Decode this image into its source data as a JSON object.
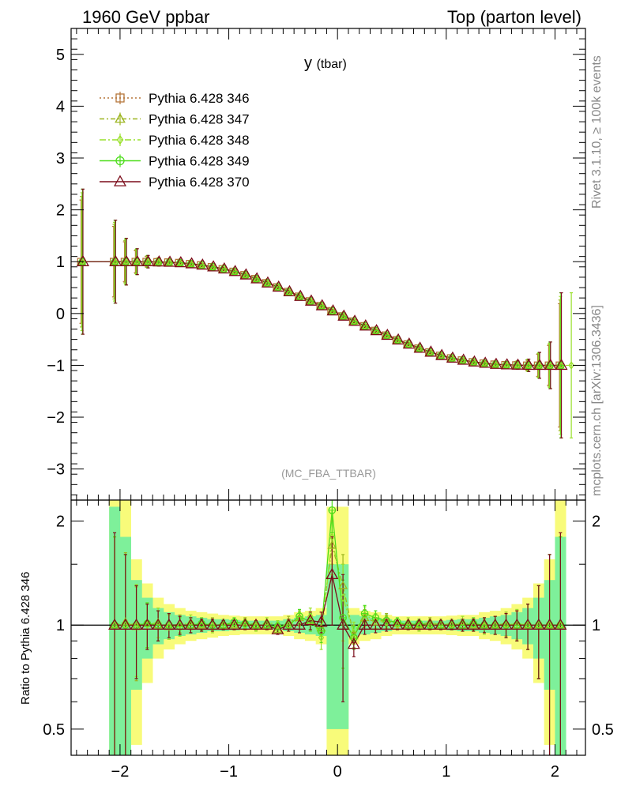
{
  "header": {
    "left_title": "1960 GeV ppbar",
    "right_title": "Top (parton level)"
  },
  "plot_title_main": "y",
  "plot_title_sub": "(tbar)",
  "analysis_tag": "(MC_FBA_TTBAR)",
  "side_labels": {
    "rivet": "Rivet 3.1.10, ≥ 100k events",
    "source": "mcplots.cern.ch [arXiv:1306.3436]"
  },
  "ratio_ylabel": "Ratio to Pythia 6.428 346",
  "colors": {
    "s346": "#b5753a",
    "s347": "#9cb520",
    "s348": "#99e02a",
    "s349": "#4cdd1a",
    "s370": "#7b0c1a",
    "band_inner": "#7ef09a",
    "band_outer": "#f8fb7a"
  },
  "legend": [
    {
      "name": "Pythia 6.428 346",
      "key": "s346",
      "marker": "square",
      "dash": "2,3"
    },
    {
      "name": "Pythia 6.428 347",
      "key": "s347",
      "marker": "triangle",
      "dash": "6,3,2,3"
    },
    {
      "name": "Pythia 6.428 348",
      "key": "s348",
      "marker": "diamond",
      "dash": "8,3,2,3"
    },
    {
      "name": "Pythia 6.428 349",
      "key": "s349",
      "marker": "circle",
      "dash": ""
    },
    {
      "name": "Pythia 6.428 370",
      "key": "s370",
      "marker": "triangle",
      "dash": ""
    }
  ],
  "chart_data": [
    {
      "type": "scatter",
      "panel": "main",
      "xlim": [
        -2.45,
        2.28
      ],
      "ylim": [
        -3.6,
        5.5
      ],
      "xticks": [
        -2,
        -1,
        0,
        1,
        2
      ],
      "xtick_labels": [
        "−2",
        "−1",
        "0",
        "1",
        "2"
      ],
      "yticks": [
        -3,
        -2,
        -1,
        0,
        1,
        2,
        3,
        4,
        5
      ],
      "ytick_labels": [
        "−3",
        "−2",
        "−1",
        "0",
        "1",
        "2",
        "3",
        "4",
        "5"
      ],
      "x": [
        -2.35,
        -2.05,
        -1.95,
        -1.85,
        -1.75,
        -1.65,
        -1.55,
        -1.45,
        -1.35,
        -1.25,
        -1.15,
        -1.05,
        -0.95,
        -0.85,
        -0.75,
        -0.65,
        -0.55,
        -0.45,
        -0.35,
        -0.25,
        -0.15,
        -0.05,
        0.05,
        0.15,
        0.25,
        0.35,
        0.45,
        0.55,
        0.65,
        0.75,
        0.85,
        0.95,
        1.05,
        1.15,
        1.25,
        1.35,
        1.45,
        1.55,
        1.65,
        1.75,
        1.85,
        1.95,
        2.05
      ],
      "y": [
        1.0,
        1.0,
        1.0,
        1.0,
        1.0,
        0.995,
        0.99,
        0.98,
        0.96,
        0.935,
        0.9,
        0.86,
        0.81,
        0.745,
        0.67,
        0.59,
        0.51,
        0.42,
        0.33,
        0.24,
        0.15,
        0.05,
        -0.05,
        -0.15,
        -0.24,
        -0.33,
        -0.42,
        -0.51,
        -0.59,
        -0.67,
        -0.745,
        -0.81,
        -0.86,
        -0.9,
        -0.935,
        -0.96,
        -0.98,
        -0.99,
        -0.995,
        -1.0,
        -1.0,
        -1.0,
        -1.0
      ],
      "yerr": [
        1.4,
        0.8,
        0.45,
        0.25,
        0.12,
        0.08,
        0.06,
        0.05,
        0.04,
        0.03,
        0.03,
        0.03,
        0.03,
        0.03,
        0.03,
        0.03,
        0.03,
        0.03,
        0.03,
        0.03,
        0.03,
        0.03,
        0.03,
        0.03,
        0.03,
        0.03,
        0.03,
        0.03,
        0.03,
        0.03,
        0.03,
        0.03,
        0.03,
        0.03,
        0.03,
        0.04,
        0.05,
        0.06,
        0.08,
        0.12,
        0.25,
        0.45,
        1.4
      ],
      "extra_points": [
        {
          "series": "Pythia 6.428 348",
          "x": 2.15,
          "y": -1.0,
          "yerr": 1.4
        }
      ]
    },
    {
      "type": "scatter",
      "panel": "ratio",
      "ylabel": "Ratio to Pythia 6.428 346",
      "xlim": [
        -2.45,
        2.28
      ],
      "ylim": [
        0.42,
        2.3
      ],
      "log_y": true,
      "yticks": [
        0.5,
        1,
        2
      ],
      "ytick_labels": [
        "0.5",
        "1",
        "2"
      ],
      "bins": [
        -2.1,
        -2.0,
        -1.9,
        -1.8,
        -1.7,
        -1.6,
        -1.5,
        -1.4,
        -1.3,
        -1.2,
        -1.1,
        -1.0,
        -0.9,
        -0.8,
        -0.7,
        -0.6,
        -0.5,
        -0.4,
        -0.3,
        -0.2,
        -0.1,
        0.0,
        0.1,
        0.2,
        0.3,
        0.4,
        0.5,
        0.6,
        0.7,
        0.8,
        0.9,
        1.0,
        1.1,
        1.2,
        1.3,
        1.4,
        1.5,
        1.6,
        1.7,
        1.8,
        1.9,
        2.0,
        2.1
      ],
      "band_inner_halfwidth": [
        1.2,
        0.8,
        0.35,
        0.2,
        0.12,
        0.09,
        0.07,
        0.06,
        0.05,
        0.04,
        0.04,
        0.035,
        0.03,
        0.03,
        0.03,
        0.03,
        0.04,
        0.05,
        0.06,
        0.07,
        0.5,
        0.5,
        0.07,
        0.06,
        0.05,
        0.04,
        0.03,
        0.03,
        0.03,
        0.03,
        0.03,
        0.035,
        0.04,
        0.04,
        0.05,
        0.06,
        0.07,
        0.09,
        0.12,
        0.2,
        0.35,
        0.8
      ],
      "band_outer_halfwidth": [
        1.9,
        1.3,
        0.55,
        0.32,
        0.2,
        0.15,
        0.12,
        0.1,
        0.09,
        0.08,
        0.07,
        0.065,
        0.06,
        0.06,
        0.06,
        0.06,
        0.07,
        0.09,
        0.1,
        0.12,
        1.2,
        1.2,
        0.12,
        0.1,
        0.09,
        0.07,
        0.06,
        0.06,
        0.06,
        0.06,
        0.06,
        0.065,
        0.07,
        0.07,
        0.09,
        0.1,
        0.12,
        0.15,
        0.2,
        0.32,
        0.55,
        1.3
      ],
      "x": [
        -2.05,
        -1.95,
        -1.85,
        -1.75,
        -1.65,
        -1.55,
        -1.45,
        -1.35,
        -1.25,
        -1.15,
        -1.05,
        -0.95,
        -0.85,
        -0.75,
        -0.65,
        -0.55,
        -0.45,
        -0.35,
        -0.25,
        -0.15,
        -0.05,
        0.05,
        0.15,
        0.25,
        0.35,
        0.45,
        0.55,
        0.65,
        0.75,
        0.85,
        0.95,
        1.05,
        1.15,
        1.25,
        1.35,
        1.45,
        1.55,
        1.65,
        1.75,
        1.85,
        1.95,
        2.05
      ],
      "series": [
        {
          "name": "Pythia 6.428 347",
          "key": "s347",
          "values": [
            1.0,
            1.02,
            0.99,
            1.01,
            1.0,
            0.99,
            1.01,
            1.0,
            1.0,
            1.01,
            1.0,
            1.0,
            1.02,
            1.0,
            1.0,
            0.97,
            1.02,
            1.05,
            1.03,
            0.98,
            1.7,
            1.3,
            0.93,
            1.05,
            1.02,
            1.04,
            1.01,
            1.0,
            1.0,
            1.02,
            1.0,
            1.01,
            1.0,
            1.0,
            1.0,
            1.0,
            1.01,
            1.0,
            1.0,
            1.0,
            1.0,
            1.0
          ],
          "errors": [
            0.8,
            0.6,
            0.3,
            0.15,
            0.1,
            0.08,
            0.06,
            0.05,
            0.04,
            0.04,
            0.03,
            0.03,
            0.03,
            0.03,
            0.03,
            0.03,
            0.04,
            0.05,
            0.06,
            0.07,
            0.3,
            0.3,
            0.07,
            0.06,
            0.05,
            0.04,
            0.03,
            0.03,
            0.03,
            0.03,
            0.03,
            0.03,
            0.04,
            0.04,
            0.05,
            0.06,
            0.08,
            0.1,
            0.15,
            0.3,
            0.6,
            0.8
          ]
        },
        {
          "name": "Pythia 6.428 348",
          "key": "s348",
          "values": [
            1.0,
            1.0,
            1.01,
            1.0,
            1.02,
            0.99,
            1.0,
            1.02,
            1.0,
            0.99,
            1.01,
            1.0,
            1.0,
            0.99,
            1.02,
            1.0,
            1.0,
            1.04,
            1.06,
            0.92,
            1.8,
            1.2,
            0.95,
            1.07,
            1.03,
            1.02,
            1.0,
            1.02,
            0.99,
            1.0,
            1.01,
            1.0,
            1.02,
            1.0,
            0.99,
            1.0,
            1.0,
            1.01,
            1.0,
            1.0,
            1.0,
            1.0
          ],
          "errors": [
            0.8,
            0.6,
            0.3,
            0.15,
            0.1,
            0.08,
            0.06,
            0.05,
            0.04,
            0.04,
            0.03,
            0.03,
            0.03,
            0.03,
            0.03,
            0.03,
            0.04,
            0.05,
            0.06,
            0.07,
            0.3,
            0.3,
            0.07,
            0.06,
            0.05,
            0.04,
            0.03,
            0.03,
            0.03,
            0.03,
            0.03,
            0.03,
            0.04,
            0.04,
            0.05,
            0.06,
            0.08,
            0.1,
            0.15,
            0.3,
            0.6,
            0.8
          ]
        },
        {
          "name": "Pythia 6.428 349",
          "key": "s349",
          "values": [
            1.0,
            1.0,
            1.0,
            1.01,
            1.0,
            1.0,
            0.99,
            1.0,
            1.01,
            1.0,
            1.0,
            1.02,
            1.01,
            1.0,
            1.0,
            0.99,
            1.0,
            1.06,
            1.02,
            0.96,
            2.15,
            1.05,
            0.92,
            1.08,
            1.05,
            1.03,
            1.02,
            1.0,
            1.01,
            1.0,
            1.0,
            1.0,
            1.0,
            1.01,
            1.0,
            1.0,
            1.0,
            1.0,
            1.0,
            1.0,
            1.0,
            1.0
          ],
          "errors": [
            0.8,
            0.6,
            0.3,
            0.15,
            0.1,
            0.08,
            0.06,
            0.05,
            0.04,
            0.04,
            0.03,
            0.03,
            0.03,
            0.03,
            0.03,
            0.03,
            0.04,
            0.05,
            0.06,
            0.07,
            0.3,
            0.3,
            0.07,
            0.06,
            0.05,
            0.04,
            0.03,
            0.03,
            0.03,
            0.03,
            0.03,
            0.03,
            0.04,
            0.04,
            0.05,
            0.06,
            0.08,
            0.1,
            0.15,
            0.3,
            0.6,
            0.8
          ]
        },
        {
          "name": "Pythia 6.428 370",
          "key": "s370",
          "values": [
            1.0,
            1.0,
            1.0,
            1.0,
            1.0,
            1.0,
            1.0,
            1.0,
            1.0,
            1.0,
            1.0,
            1.0,
            1.0,
            1.0,
            1.0,
            0.97,
            1.0,
            1.0,
            1.03,
            1.02,
            1.4,
            1.0,
            0.88,
            1.0,
            1.0,
            1.0,
            1.0,
            1.0,
            1.0,
            1.0,
            1.0,
            1.0,
            1.0,
            1.0,
            1.0,
            1.0,
            1.0,
            1.0,
            1.0,
            1.0,
            1.0,
            1.0
          ],
          "errors": [
            0.85,
            0.6,
            0.3,
            0.15,
            0.1,
            0.08,
            0.06,
            0.05,
            0.04,
            0.04,
            0.03,
            0.03,
            0.03,
            0.03,
            0.03,
            0.03,
            0.04,
            0.05,
            0.06,
            0.07,
            0.4,
            0.4,
            0.07,
            0.06,
            0.05,
            0.04,
            0.03,
            0.03,
            0.03,
            0.03,
            0.03,
            0.03,
            0.04,
            0.04,
            0.05,
            0.06,
            0.08,
            0.1,
            0.15,
            0.3,
            0.6,
            0.85
          ]
        }
      ]
    }
  ]
}
